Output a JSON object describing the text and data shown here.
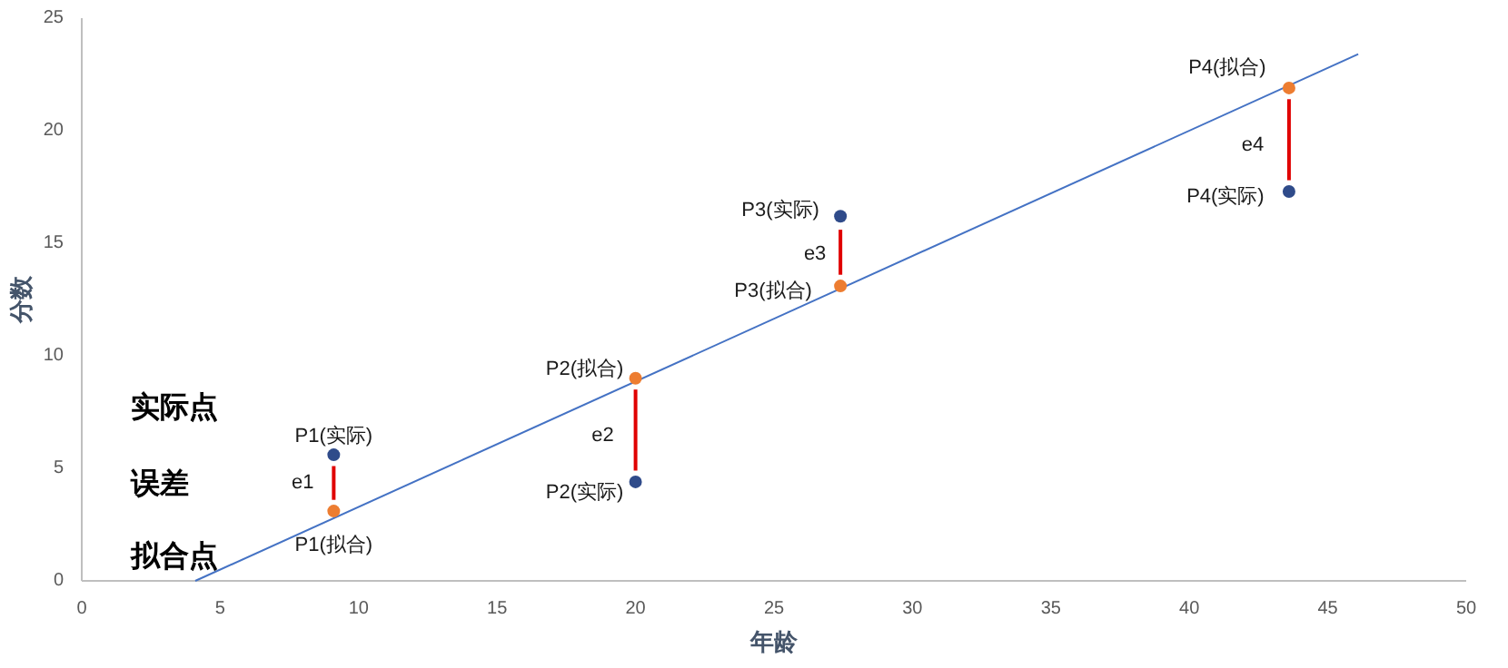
{
  "chart_data": {
    "type": "scatter",
    "xlabel": "年龄",
    "ylabel": "分数",
    "xlim": [
      0,
      50
    ],
    "ylim": [
      0,
      25
    ],
    "xticks": [
      0,
      5,
      10,
      15,
      20,
      25,
      30,
      35,
      40,
      45,
      50
    ],
    "yticks": [
      0,
      5,
      10,
      15,
      20,
      25
    ],
    "grid": false,
    "series": [
      {
        "type": "line",
        "marker": "none",
        "color": "#4472c4",
        "x": [
          4.1,
          46.1
        ],
        "values": [
          0,
          23.4
        ]
      },
      {
        "type": "line",
        "marker": "none",
        "color": "#e00000",
        "x": [
          9.1,
          9.1
        ],
        "values": [
          3.6,
          5.1
        ]
      },
      {
        "type": "line",
        "marker": "none",
        "color": "#e00000",
        "x": [
          20,
          20
        ],
        "values": [
          4.9,
          8.5
        ]
      },
      {
        "type": "line",
        "marker": "none",
        "color": "#e00000",
        "x": [
          27.4,
          27.4
        ],
        "values": [
          13.6,
          15.6
        ]
      },
      {
        "type": "line",
        "marker": "none",
        "color": "#e00000",
        "x": [
          43.6,
          43.6
        ],
        "values": [
          17.8,
          21.4
        ]
      },
      {
        "marker": "circle",
        "color": "#2f4b8a",
        "x": [
          9.1,
          20,
          27.4,
          43.6
        ],
        "values": [
          5.6,
          4.4,
          16.2,
          17.3
        ]
      },
      {
        "marker": "circle",
        "color": "#ed7d31",
        "x": [
          9.1,
          20,
          27.4,
          43.6
        ],
        "values": [
          3.1,
          9.0,
          13.1,
          21.9
        ]
      }
    ],
    "annotations": [
      "实际点",
      "误差",
      "拟合点",
      {
        "text": "P1(实际)",
        "x": 9.1,
        "y": 5.6
      },
      {
        "text": "e1",
        "x": 9.1,
        "y": 4.35
      },
      {
        "text": "P1(拟合)",
        "x": 9.1,
        "y": 3.1
      },
      {
        "text": "P2(拟合)",
        "x": 20,
        "y": 9.0
      },
      {
        "text": "e2",
        "x": 20,
        "y": 6.7
      },
      {
        "text": "P2(实际)",
        "x": 20,
        "y": 4.4
      },
      {
        "text": "P3(实际)",
        "x": 27.4,
        "y": 16.2
      },
      {
        "text": "e3",
        "x": 27.4,
        "y": 14.6
      },
      {
        "text": "P3(拟合)",
        "x": 27.4,
        "y": 13.1
      },
      {
        "text": "P4(拟合)",
        "x": 43.6,
        "y": 21.9
      },
      {
        "text": "e4",
        "x": 43.6,
        "y": 19.6
      },
      {
        "text": "P4(实际)",
        "x": 43.6,
        "y": 17.3
      }
    ]
  }
}
